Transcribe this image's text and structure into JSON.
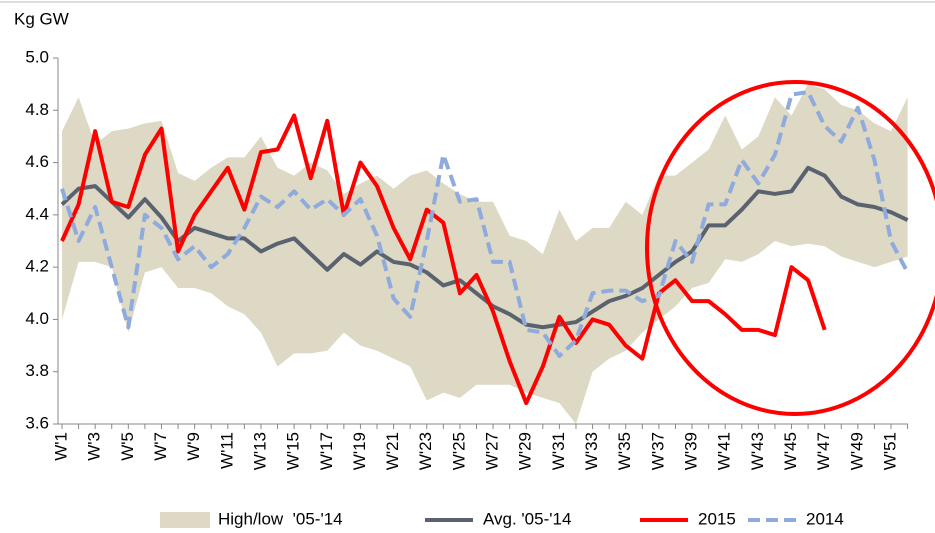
{
  "chart_data": {
    "type": "line",
    "y_label": "Kg GW",
    "categories": [
      "W'1",
      null,
      "W'3",
      null,
      "W'5",
      null,
      "W'7",
      null,
      "W'9",
      null,
      "W'11",
      null,
      "W'13",
      null,
      "W'15",
      null,
      "W'17",
      null,
      "W'19",
      null,
      "W'21",
      null,
      "W'23",
      null,
      "W'25",
      null,
      "W'27",
      null,
      "W'29",
      null,
      "W'31",
      null,
      "W'33",
      null,
      "W'35",
      null,
      "W'37",
      null,
      "W'39",
      null,
      "W'41",
      null,
      "W'43",
      null,
      "W'45",
      null,
      "W'47",
      null,
      "W'49",
      null,
      "W'51",
      null
    ],
    "ylim": [
      3.6,
      5.0
    ],
    "yticks": [
      3.6,
      3.8,
      {
        "value": 4.0,
        "label": "4.0"
      },
      4.2,
      4.4,
      4.6,
      4.8,
      {
        "value": 5.0,
        "label": "5.0"
      }
    ],
    "grid": false,
    "legend": "bottom",
    "series": [
      {
        "name": "High/low  '05-'14",
        "color": "#ddd9c4",
        "type": "band",
        "high": [
          4.72,
          4.85,
          4.67,
          4.72,
          4.73,
          4.75,
          4.76,
          4.56,
          4.53,
          4.58,
          4.62,
          4.62,
          4.7,
          4.58,
          4.55,
          4.6,
          4.57,
          4.48,
          4.52,
          4.55,
          4.5,
          4.55,
          4.57,
          4.52,
          4.48,
          4.45,
          4.45,
          4.32,
          4.3,
          4.25,
          4.42,
          4.3,
          4.35,
          4.35,
          4.45,
          4.4,
          4.55,
          4.55,
          4.6,
          4.65,
          4.78,
          4.65,
          4.7,
          4.85,
          4.78,
          4.9,
          4.88,
          4.82,
          4.8,
          4.75,
          4.72,
          4.85
        ],
        "low": [
          4.0,
          4.22,
          4.22,
          4.2,
          3.95,
          4.18,
          4.2,
          4.12,
          4.12,
          4.1,
          4.05,
          4.02,
          3.95,
          3.82,
          3.87,
          3.87,
          3.88,
          3.95,
          3.9,
          3.88,
          3.85,
          3.82,
          3.69,
          3.72,
          3.7,
          3.75,
          3.75,
          3.75,
          3.72,
          3.7,
          3.68,
          3.6,
          3.8,
          3.85,
          3.88,
          3.95,
          4.0,
          4.05,
          4.12,
          4.14,
          4.23,
          4.22,
          4.25,
          4.3,
          4.28,
          4.29,
          4.28,
          4.24,
          4.22,
          4.2,
          4.22,
          4.24
        ]
      },
      {
        "name": "Avg. '05-'14",
        "color": "#5a6270",
        "dashed": false,
        "values": [
          4.44,
          4.5,
          4.51,
          4.45,
          4.39,
          4.46,
          4.39,
          4.3,
          4.35,
          4.33,
          4.31,
          4.31,
          4.26,
          4.29,
          4.31,
          4.25,
          4.19,
          4.25,
          4.21,
          4.26,
          4.22,
          4.21,
          4.18,
          4.13,
          4.15,
          4.1,
          4.05,
          4.02,
          3.98,
          3.97,
          3.98,
          3.99,
          4.03,
          4.07,
          4.09,
          4.12,
          4.17,
          4.22,
          4.26,
          4.36,
          4.36,
          4.42,
          4.49,
          4.48,
          4.49,
          4.58,
          4.55,
          4.47,
          4.44,
          4.43,
          4.41,
          4.38
        ]
      },
      {
        "name": "2015",
        "color": "#ff0000",
        "dashed": false,
        "values": [
          4.3,
          4.44,
          4.72,
          4.45,
          4.43,
          4.63,
          4.73,
          4.26,
          4.4,
          4.49,
          4.58,
          4.42,
          4.64,
          4.65,
          4.78,
          4.54,
          4.76,
          4.4,
          4.6,
          4.51,
          4.35,
          4.23,
          4.42,
          4.37,
          4.1,
          4.17,
          4.03,
          3.84,
          3.68,
          3.82,
          4.01,
          3.91,
          4.0,
          3.98,
          3.9,
          3.85,
          4.1,
          4.15,
          4.07,
          4.07,
          4.02,
          3.96,
          3.96,
          3.94,
          4.2,
          4.15,
          3.96,
          null,
          null,
          null,
          null,
          null
        ]
      },
      {
        "name": "2014",
        "color": "#8faadc",
        "dashed": true,
        "values": [
          4.5,
          4.3,
          4.43,
          4.2,
          3.97,
          4.4,
          4.35,
          4.23,
          4.28,
          4.2,
          4.25,
          4.35,
          4.47,
          4.43,
          4.49,
          4.42,
          4.46,
          4.4,
          4.46,
          4.32,
          4.08,
          4.01,
          4.3,
          4.63,
          4.45,
          4.46,
          4.22,
          4.22,
          3.96,
          3.95,
          3.86,
          3.92,
          4.1,
          4.11,
          4.11,
          4.07,
          4.09,
          4.3,
          4.22,
          4.44,
          4.44,
          4.61,
          4.52,
          4.63,
          4.86,
          4.87,
          4.74,
          4.68,
          4.81,
          4.61,
          4.3,
          4.18
        ]
      }
    ]
  }
}
